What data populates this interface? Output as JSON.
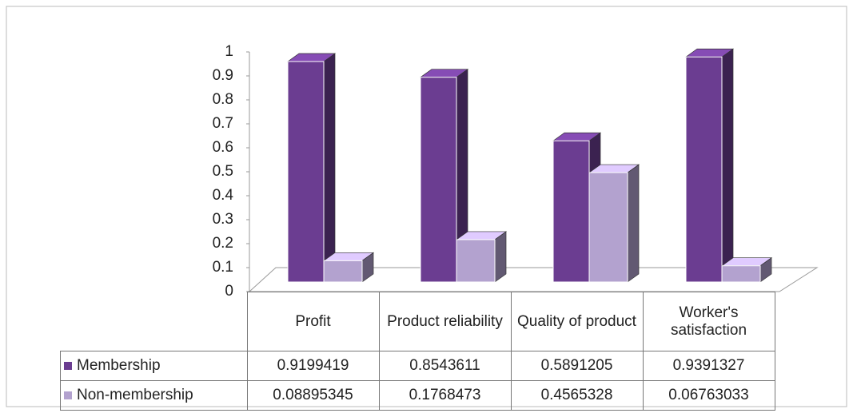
{
  "chart_data": {
    "type": "bar3d",
    "categories": [
      "Profit",
      "Product reliability",
      "Quality of product",
      "Worker's satisfaction"
    ],
    "series": [
      {
        "name": "Membership",
        "color": "#6b3d91",
        "values": [
          0.9199419,
          0.8543611,
          0.5891205,
          0.9391327
        ]
      },
      {
        "name": "Non-membership",
        "color": "#b3a2cf",
        "values": [
          0.08895345,
          0.1768473,
          0.4565328,
          0.06763033
        ]
      }
    ],
    "ylim": [
      0,
      1
    ],
    "yticks": [
      0,
      0.1,
      0.2,
      0.3,
      0.4,
      0.5,
      0.6,
      0.7,
      0.8,
      0.9,
      1
    ],
    "grid": false,
    "data_table": true
  }
}
